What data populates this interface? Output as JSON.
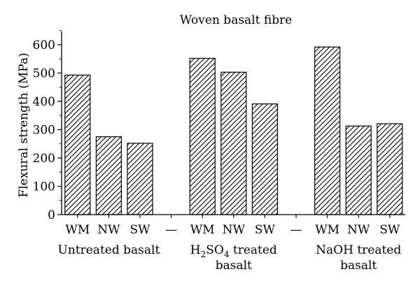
{
  "chart_data": {
    "type": "bar",
    "title": "Woven basalt fibre",
    "ylabel": "Flexural strength (MPa)",
    "xlabel": "",
    "ylim": [
      0,
      650
    ],
    "yticks": [
      0,
      100,
      200,
      300,
      400,
      500,
      600
    ],
    "grid": false,
    "fill_pattern": "diagonal-hatch",
    "separator_label": "—",
    "groups": [
      {
        "label_lines": [
          "Untreated basalt"
        ],
        "categories": [
          "WM",
          "NW",
          "SW"
        ],
        "values": [
          493,
          275,
          252
        ]
      },
      {
        "label_lines": [
          "H2SO4 treated",
          "basalt"
        ],
        "label_rich": {
          "prefix": "H",
          "sub1": "2",
          "mid": "SO",
          "sub2": "4",
          "suffix": " treated"
        },
        "categories": [
          "WM",
          "NW",
          "SW"
        ],
        "values": [
          552,
          503,
          391
        ]
      },
      {
        "label_lines": [
          "NaOH treated",
          "basalt"
        ],
        "categories": [
          "WM",
          "NW",
          "SW"
        ],
        "values": [
          592,
          313,
          321
        ]
      }
    ]
  }
}
